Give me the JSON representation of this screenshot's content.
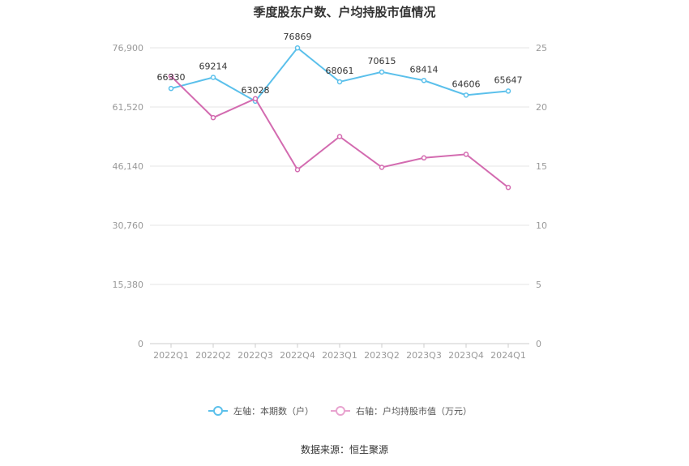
{
  "chart_data": {
    "type": "line",
    "title": "季度股东户数、户均持股市值情况",
    "categories": [
      "2022Q1",
      "2022Q2",
      "2022Q3",
      "2022Q4",
      "2023Q1",
      "2023Q2",
      "2023Q3",
      "2023Q4",
      "2024Q1"
    ],
    "series": [
      {
        "name": "左轴：本期数（户）",
        "axis": "left",
        "color": "#5bc0eb",
        "values": [
          66330,
          69214,
          63028,
          76869,
          68061,
          70615,
          68414,
          64606,
          65647
        ],
        "labels": [
          "66330",
          "69214",
          "63028",
          "76869",
          "68061",
          "70615",
          "68414",
          "64606",
          "65647"
        ]
      },
      {
        "name": "右轴：户均持股市值（万元）",
        "axis": "right",
        "color": "#d36bb0",
        "values": [
          22.6,
          19.1,
          20.7,
          14.7,
          17.5,
          14.9,
          15.7,
          16.0,
          13.2
        ]
      }
    ],
    "y_left": {
      "min": 0,
      "max": 76900,
      "ticks": [
        0,
        15380,
        30760,
        46140,
        61520,
        76900
      ],
      "tick_labels": [
        "0",
        "15,380",
        "30,760",
        "46,140",
        "61,520",
        "76,900"
      ]
    },
    "y_right": {
      "min": 0,
      "max": 25,
      "ticks": [
        0,
        5,
        10,
        15,
        20,
        25
      ],
      "tick_labels": [
        "0",
        "5",
        "10",
        "15",
        "20",
        "25"
      ]
    },
    "grid": true,
    "legend_position": "bottom-center"
  },
  "source_text": "数据来源：恒生聚源"
}
